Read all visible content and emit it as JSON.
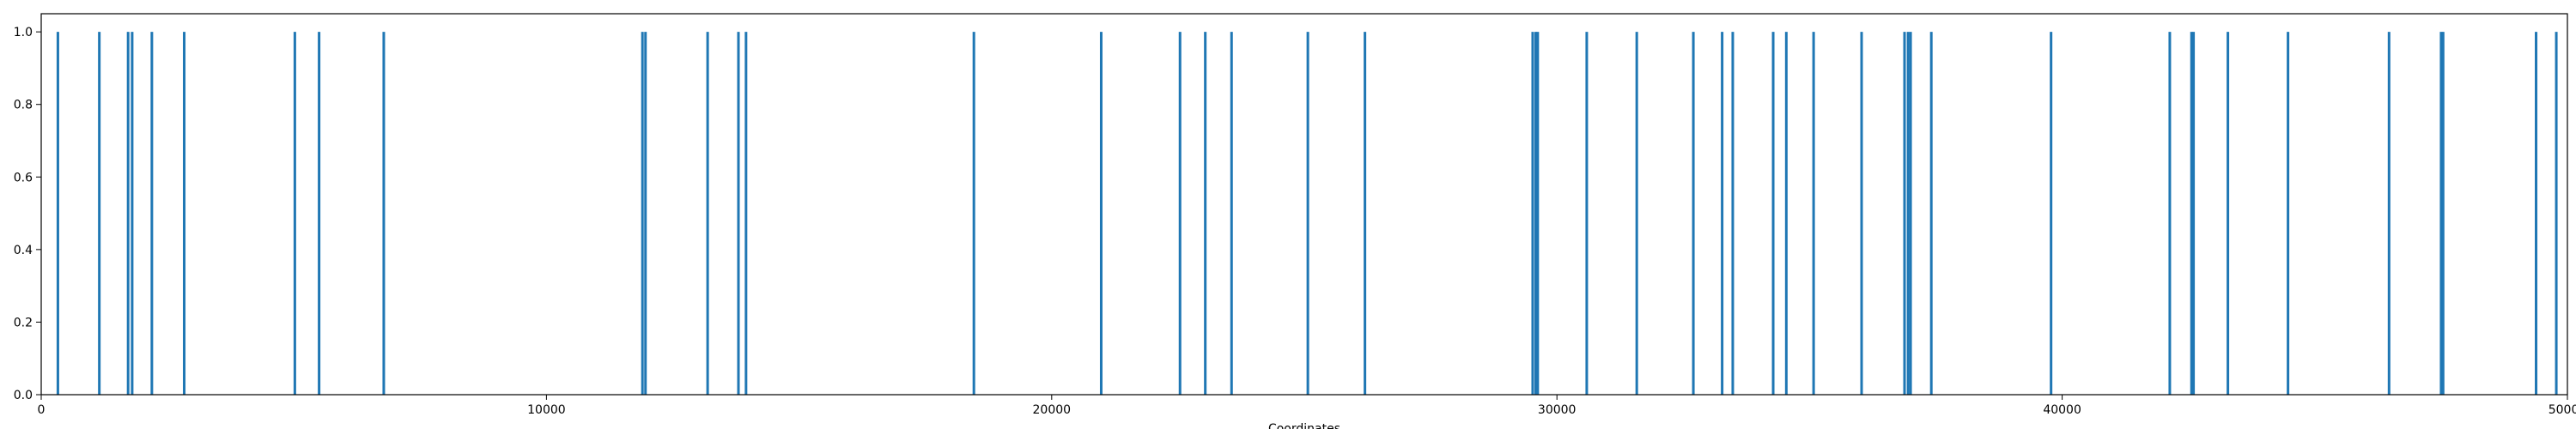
{
  "chart_data": {
    "type": "bar",
    "xlabel": "Coordinates",
    "ylabel": "",
    "xlim": [
      0,
      50000
    ],
    "ylim": [
      0,
      1.05
    ],
    "grid": false,
    "x_ticks": [
      0,
      10000,
      20000,
      30000,
      40000,
      50000
    ],
    "x_tick_labels": [
      "0",
      "10000",
      "20000",
      "30000",
      "40000",
      "50000"
    ],
    "y_ticks": [
      0.0,
      0.2,
      0.4,
      0.6,
      0.8,
      1.0
    ],
    "y_tick_labels": [
      "0.0",
      "0.2",
      "0.4",
      "0.6",
      "0.8",
      "1.0"
    ],
    "bar_color": "#1f77b4",
    "series": [
      {
        "x": [
          330,
          1150,
          1720,
          1800,
          2190,
          2830,
          5020,
          5500,
          6780,
          11900,
          11960,
          13190,
          13800,
          13950,
          18460,
          20980,
          22540,
          23040,
          23560,
          25070,
          26200,
          29520,
          29580,
          29620,
          30590,
          31580,
          32700,
          33270,
          33480,
          34280,
          34540,
          35080,
          36030,
          36880,
          36950,
          37000,
          37410,
          39780,
          42130,
          42560,
          42600,
          43280,
          44470,
          46470,
          47500,
          47540,
          49380,
          49780
        ],
        "values": [
          1,
          1,
          1,
          1,
          1,
          1,
          1,
          1,
          1,
          1,
          1,
          1,
          1,
          1,
          1,
          1,
          1,
          1,
          1,
          1,
          1,
          1,
          1,
          1,
          1,
          1,
          1,
          1,
          1,
          1,
          1,
          1,
          1,
          1,
          1,
          1,
          1,
          1,
          1,
          1,
          1,
          1,
          1,
          1,
          1,
          1,
          1,
          1
        ]
      }
    ]
  }
}
